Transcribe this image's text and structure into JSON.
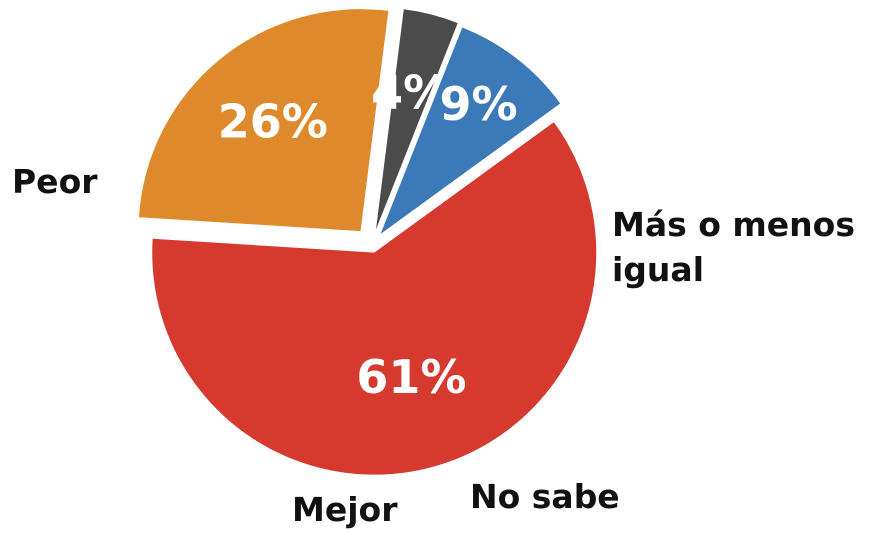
{
  "chart_data": {
    "type": "pie",
    "categories": [
      "Peor",
      "Más o menos igual",
      "No sabe",
      "Mejor"
    ],
    "values": [
      61,
      26,
      4,
      9
    ],
    "value_labels": [
      "61%",
      "26%",
      "4%",
      "9%"
    ],
    "colors": [
      "#d63a2f",
      "#de8a2c",
      "#4b4b4b",
      "#3b79b9"
    ]
  }
}
